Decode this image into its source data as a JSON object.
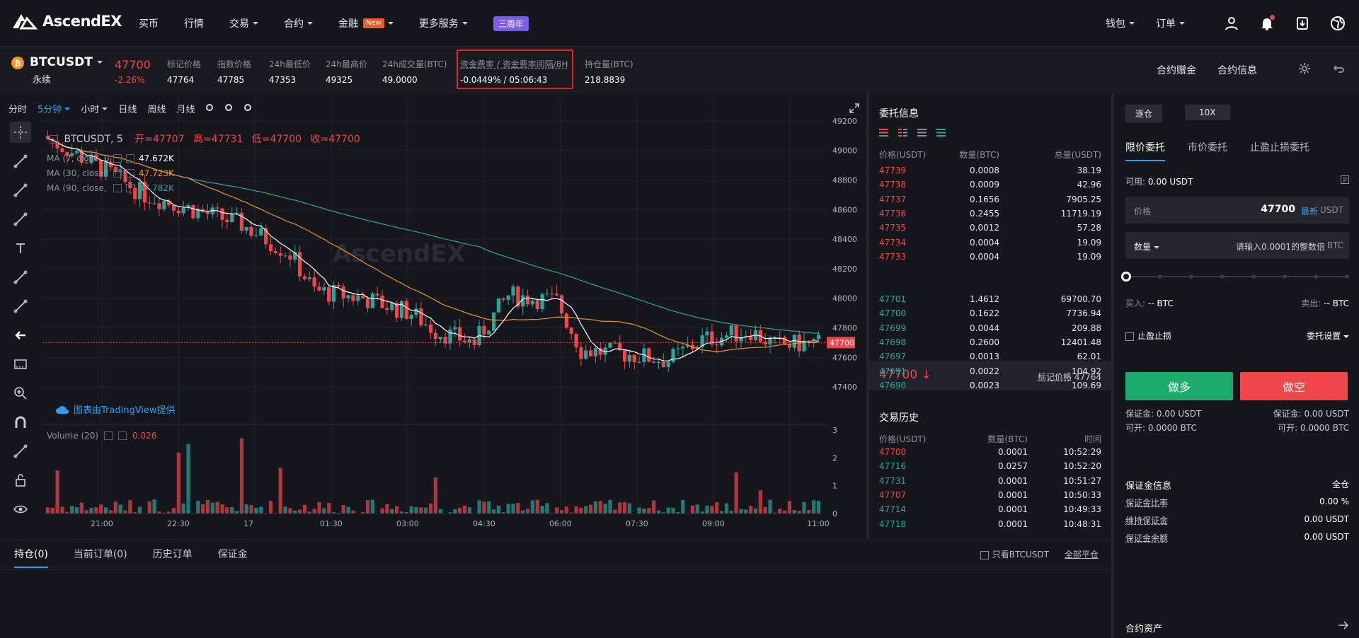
{
  "nav": {
    "brand": "AscendEX",
    "items": [
      {
        "label": "买币",
        "caret": false
      },
      {
        "label": "行情",
        "caret": false
      },
      {
        "label": "交易",
        "caret": true
      },
      {
        "label": "合约",
        "caret": true
      },
      {
        "label": "金融",
        "caret": true,
        "badge": "New"
      },
      {
        "label": "更多服务",
        "caret": true
      }
    ],
    "anniversary": "三周年",
    "wallet": "钱包",
    "orders": "订单"
  },
  "ticker": {
    "pair": "BTCUSDT",
    "type": "永续",
    "last": "47700",
    "change": "-2.26%",
    "stats": [
      {
        "label": "标记价格",
        "value": "47764"
      },
      {
        "label": "指数价格",
        "value": "47785"
      },
      {
        "label": "24h最低价",
        "value": "47353"
      },
      {
        "label": "24h最高价",
        "value": "49325"
      },
      {
        "label": "24h成交量(BTC)",
        "value": "49.0000"
      },
      {
        "label": "资金费率 / 资金费率间隔/8H",
        "value": "-0.0449% / 05:06:43"
      },
      {
        "label": "持仓量(BTC)",
        "value": "218.8839"
      }
    ],
    "right_links": [
      "合约赠金",
      "合约信息"
    ]
  },
  "chart": {
    "intervals": [
      "分时",
      "5分钟",
      "小时",
      "日线",
      "周线",
      "月线"
    ],
    "active_interval": "5分钟",
    "symbol_label": "BTCUSDT, 5",
    "ohlc": {
      "open": "开=47707",
      "high": "高=47731",
      "low": "低=47700",
      "close": "收=47700"
    },
    "ma_rows": [
      {
        "label": "MA (7, close, 0)",
        "value": "47.672K",
        "color": "#ffffff"
      },
      {
        "label": "MA (30, close, 0)",
        "value": "47.723K",
        "color": "#e0962a"
      },
      {
        "label": "MA (90, close, 0)",
        "value": "47.782K",
        "color": "#26a69a"
      }
    ],
    "credit": "图表由TradingView提供",
    "volume_label": "Volume (20)",
    "volume_value": "0.026",
    "price_ticks": [
      "49200",
      "49000",
      "48800",
      "48600",
      "48400",
      "48200",
      "48000",
      "47800",
      "47600",
      "47400"
    ],
    "current_price_tag": "47700",
    "volume_ticks": [
      "3",
      "2",
      "1",
      "0"
    ],
    "time_ticks": [
      "21:00",
      "22:30",
      "17",
      "01:30",
      "03:00",
      "04:30",
      "06:00",
      "07:30",
      "09:00",
      "11:00"
    ]
  },
  "orderbook": {
    "title": "委托信息",
    "headers": [
      "价格(USDT)",
      "数量(BTC)",
      "总量(USDT)"
    ],
    "asks": [
      [
        "47739",
        "0.0008",
        "38.19"
      ],
      [
        "47738",
        "0.0009",
        "42.96"
      ],
      [
        "47737",
        "0.1656",
        "7905.25"
      ],
      [
        "47736",
        "0.2455",
        "11719.19"
      ],
      [
        "47735",
        "0.0012",
        "57.28"
      ],
      [
        "47734",
        "0.0004",
        "19.09"
      ],
      [
        "47733",
        "0.0004",
        "19.09"
      ]
    ],
    "mid_price": "47700",
    "mark_label": "标记价格",
    "mark_value": "47764",
    "bids": [
      [
        "47701",
        "1.4612",
        "69700.70"
      ],
      [
        "47700",
        "0.1622",
        "7736.94"
      ],
      [
        "47699",
        "0.0044",
        "209.88"
      ],
      [
        "47698",
        "0.2600",
        "12401.48"
      ],
      [
        "47697",
        "0.0013",
        "62.01"
      ],
      [
        "47691",
        "0.0022",
        "104.92"
      ],
      [
        "47690",
        "0.0023",
        "109.69"
      ]
    ],
    "history_title": "交易历史",
    "history_headers": [
      "价格(USDT)",
      "数量(BTC)",
      "时间"
    ],
    "history": [
      {
        "price": "47700",
        "qty": "0.0001",
        "time": "10:52:29",
        "side": "sell"
      },
      {
        "price": "47716",
        "qty": "0.0257",
        "time": "10:52:20",
        "side": "buy"
      },
      {
        "price": "47731",
        "qty": "0.0001",
        "time": "10:51:27",
        "side": "buy"
      },
      {
        "price": "47707",
        "qty": "0.0001",
        "time": "10:50:33",
        "side": "sell"
      },
      {
        "price": "47714",
        "qty": "0.0001",
        "time": "10:49:33",
        "side": "buy"
      },
      {
        "price": "47718",
        "qty": "0.0001",
        "time": "10:48:31",
        "side": "buy"
      }
    ]
  },
  "order_form": {
    "margin_mode": "逐仓",
    "leverage": "10X",
    "tabs": [
      "限价委托",
      "市价委托",
      "止盈止损委托"
    ],
    "available_label": "可用:",
    "available": "0.00 USDT",
    "price_label": "价格",
    "price_value": "47700",
    "latest": "最新",
    "price_unit": "USDT",
    "qty_label": "数量",
    "qty_placeholder": "请输入0.0001的整数倍",
    "qty_unit": "BTC",
    "buy_label": "买入:",
    "buy_value": "-- BTC",
    "sell_label": "卖出:",
    "sell_value": "-- BTC",
    "tpsl": "止盈止损",
    "settings": "委托设置",
    "long_btn": "做多",
    "short_btn": "做空",
    "margin_left": "保证金: 0.00 USDT",
    "margin_right": "保证金: 0.00 USDT",
    "open_left": "可开: 0.0000 BTC",
    "open_right": "可开: 0.0000 BTC",
    "margin_info_title": "保证金信息",
    "margin_info_mode": "全仓",
    "margin_rows": [
      {
        "label": "保证金比率",
        "value": "0.00 %"
      },
      {
        "label": "维持保证金",
        "value": "0.00 USDT"
      },
      {
        "label": "保证金余额",
        "value": "0.00 USDT"
      }
    ],
    "assets_title": "合约资产"
  },
  "bottom": {
    "tabs": [
      "持仓(0)",
      "当前订单(0)",
      "历史订单",
      "保证金"
    ],
    "only_label": "只看BTCUSDT",
    "close_all": "全部平仓"
  },
  "colors": {
    "up": "#26a69a",
    "down": "#f0454a",
    "accent": "#2a9ff0"
  }
}
